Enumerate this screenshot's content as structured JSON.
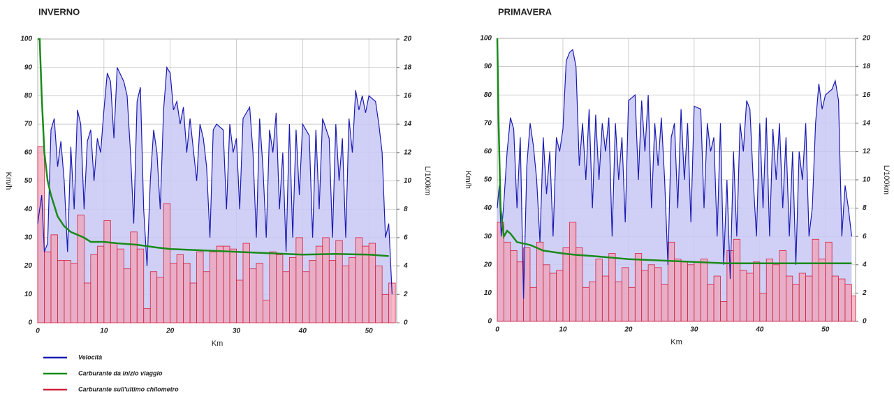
{
  "chart_data": [
    {
      "type": "combo",
      "title": "INVERNO",
      "x_label": "Km",
      "y_label": "Km/h",
      "y2_label": "L/100km",
      "xlim": [
        0,
        54.2
      ],
      "xticks": [
        0,
        10,
        20,
        30,
        40,
        50
      ],
      "ylim": [
        0,
        100
      ],
      "yticks": [
        0,
        10,
        20,
        30,
        40,
        50,
        60,
        70,
        80,
        90,
        100
      ],
      "y2lim": [
        0,
        20
      ],
      "y2ticks": [
        0,
        2,
        4,
        6,
        8,
        10,
        12,
        14,
        16,
        18,
        20
      ],
      "grid": true,
      "legend": "bottom-left",
      "series": [
        {
          "name": "Velocità",
          "type": "area",
          "color": "#1a1ab4",
          "fill": "#c8c8f5",
          "x": [
            0,
            0.3,
            0.6,
            1,
            1.5,
            2,
            2.5,
            3,
            3.5,
            4,
            4.5,
            5,
            5.5,
            6,
            6.5,
            7,
            7.5,
            8,
            8.5,
            9,
            9.5,
            10,
            10.5,
            11,
            11.5,
            12,
            13,
            13.5,
            14,
            14.5,
            15,
            15.5,
            16,
            16.5,
            17,
            17.5,
            18,
            18.5,
            19,
            19.5,
            20,
            20.5,
            21,
            21.5,
            22,
            22.5,
            23,
            24,
            24.5,
            25,
            25.5,
            26,
            26.5,
            27,
            28,
            28.5,
            29,
            29.5,
            30,
            30.5,
            31,
            32,
            32.5,
            33,
            33.5,
            34,
            34.5,
            35,
            35.5,
            36,
            36.5,
            37,
            37.5,
            38,
            38.5,
            39,
            39.5,
            40,
            41,
            41.5,
            42,
            42.5,
            43,
            44,
            44.5,
            45,
            45.5,
            46,
            46.5,
            47,
            47.5,
            48,
            48.5,
            49,
            49.5,
            50,
            51,
            51.5,
            52,
            52.5,
            53,
            53.5
          ],
          "values": [
            35,
            40,
            45,
            25,
            28,
            68,
            72,
            55,
            64,
            50,
            25,
            62,
            40,
            75,
            70,
            40,
            64,
            68,
            50,
            65,
            60,
            75,
            88,
            85,
            65,
            90,
            85,
            80,
            60,
            35,
            78,
            83,
            40,
            20,
            50,
            68,
            60,
            40,
            75,
            90,
            88,
            75,
            78,
            70,
            76,
            60,
            72,
            50,
            70,
            65,
            55,
            30,
            68,
            70,
            68,
            40,
            70,
            60,
            65,
            40,
            72,
            76,
            60,
            30,
            72,
            55,
            30,
            68,
            60,
            74,
            40,
            60,
            25,
            70,
            30,
            68,
            45,
            70,
            66,
            30,
            68,
            40,
            72,
            65,
            30,
            70,
            50,
            65,
            30,
            72,
            60,
            82,
            75,
            80,
            74,
            80,
            78,
            70,
            60,
            30,
            35,
            10
          ]
        },
        {
          "name": "Carburante da inizio viaggio",
          "type": "line",
          "axis": "y2",
          "color": "#1a8a1a",
          "x": [
            0,
            0.3,
            0.6,
            1,
            1.5,
            2,
            3,
            4,
            5,
            6,
            7,
            8,
            10,
            12,
            15,
            18,
            20,
            25,
            30,
            35,
            40,
            45,
            50,
            53
          ],
          "values": [
            20,
            20,
            16,
            12,
            10,
            9,
            7.5,
            6.8,
            6.4,
            6.2,
            6,
            5.7,
            5.7,
            5.6,
            5.5,
            5.3,
            5.2,
            5.1,
            5,
            4.9,
            4.8,
            4.85,
            4.8,
            4.7
          ]
        },
        {
          "name": "Carburante sull'ultimo chilometro",
          "type": "bar",
          "axis": "y2",
          "color": "#d02040",
          "fill": "#f3a0b4",
          "x": [
            0,
            1,
            2,
            3,
            4,
            5,
            6,
            7,
            8,
            9,
            10,
            11,
            12,
            13,
            14,
            15,
            16,
            17,
            18,
            19,
            20,
            21,
            22,
            23,
            24,
            25,
            26,
            27,
            28,
            29,
            30,
            31,
            32,
            33,
            34,
            35,
            36,
            37,
            38,
            39,
            40,
            41,
            42,
            43,
            44,
            45,
            46,
            47,
            48,
            49,
            50,
            51,
            52,
            53
          ],
          "values": [
            12.4,
            5,
            6.2,
            4.4,
            4.4,
            4.2,
            7.6,
            2.8,
            4.8,
            5.4,
            7.2,
            5.6,
            5.2,
            3.8,
            6.4,
            5.2,
            1,
            3.6,
            3.2,
            8.4,
            4.2,
            4.8,
            4.2,
            2.8,
            5,
            3.6,
            5,
            5.4,
            5.4,
            5.2,
            3,
            5.6,
            3.8,
            4.2,
            1.6,
            5,
            4.8,
            3.6,
            4.6,
            6,
            3.6,
            4.4,
            5.4,
            6,
            4.4,
            5.8,
            4,
            4.6,
            6,
            5.4,
            5.6,
            4,
            2,
            2.8
          ]
        }
      ]
    },
    {
      "type": "combo",
      "title": "PRIMAVERA",
      "x_label": "Km",
      "y_label": "Km/h",
      "y2_label": "L/100km",
      "xlim": [
        0,
        54.6
      ],
      "xticks": [
        0,
        10,
        20,
        30,
        40,
        50
      ],
      "ylim": [
        0,
        100
      ],
      "yticks": [
        0,
        10,
        20,
        30,
        40,
        50,
        60,
        70,
        80,
        90,
        100
      ],
      "y2lim": [
        0,
        20
      ],
      "y2ticks": [
        0,
        2,
        4,
        6,
        8,
        10,
        12,
        14,
        16,
        18,
        20
      ],
      "grid": true,
      "series": [
        {
          "type": "area",
          "color": "#1a1ab4",
          "fill": "#c8c8f5",
          "x": [
            0,
            0.3,
            0.6,
            1,
            1.5,
            2,
            2.5,
            3,
            3.5,
            4,
            4.5,
            5,
            5.5,
            6,
            6.5,
            7,
            7.5,
            8,
            8.5,
            9,
            9.5,
            10,
            10.5,
            11,
            11.5,
            12,
            12.5,
            13,
            13.5,
            14,
            14.5,
            15,
            15.5,
            16,
            16.5,
            17,
            17.5,
            18,
            18.5,
            19,
            19.5,
            20,
            21,
            21.5,
            22,
            22.5,
            23,
            23.5,
            24,
            24.5,
            25,
            25.5,
            26,
            26.5,
            27,
            27.5,
            28,
            28.5,
            29,
            29.5,
            30,
            31,
            31.5,
            32,
            32.5,
            33,
            33.5,
            34,
            34.5,
            35,
            35.5,
            36,
            36.5,
            37,
            37.5,
            38,
            38.5,
            39,
            39.5,
            40,
            40.5,
            41,
            41.5,
            42,
            42.5,
            43,
            43.5,
            44,
            44.5,
            45,
            45.5,
            46,
            46.5,
            47,
            47.5,
            48,
            48.5,
            49,
            49.5,
            50,
            51,
            51.5,
            52,
            52.5,
            53,
            53.5,
            54
          ],
          "values": [
            40,
            48,
            30,
            42,
            60,
            72,
            68,
            40,
            65,
            8,
            55,
            70,
            62,
            50,
            28,
            65,
            45,
            60,
            30,
            65,
            60,
            68,
            92,
            95,
            96,
            90,
            55,
            70,
            50,
            75,
            40,
            73,
            50,
            70,
            60,
            72,
            30,
            70,
            50,
            65,
            35,
            78,
            80,
            50,
            78,
            60,
            80,
            40,
            70,
            55,
            72,
            50,
            20,
            65,
            70,
            40,
            75,
            50,
            70,
            35,
            76,
            75,
            40,
            70,
            60,
            65,
            30,
            70,
            20,
            50,
            15,
            60,
            30,
            70,
            60,
            78,
            75,
            50,
            30,
            70,
            40,
            72,
            30,
            68,
            50,
            70,
            40,
            65,
            30,
            60,
            20,
            60,
            50,
            70,
            30,
            40,
            70,
            84,
            75,
            80,
            82,
            85,
            78,
            30,
            48,
            40,
            30
          ]
        },
        {
          "type": "line",
          "axis": "y2",
          "color": "#1a8a1a",
          "x": [
            0,
            0.2,
            0.5,
            1,
            1.5,
            2,
            3,
            5,
            7,
            10,
            12,
            15,
            20,
            25,
            30,
            35,
            40,
            45,
            50,
            54
          ],
          "values": [
            20,
            14,
            8,
            6,
            6.4,
            6.2,
            5.6,
            5.4,
            5,
            4.8,
            4.7,
            4.6,
            4.4,
            4.3,
            4.2,
            4.1,
            4.1,
            4.1,
            4.1,
            4.1
          ]
        },
        {
          "type": "bar",
          "axis": "y2",
          "color": "#d02040",
          "fill": "#f3a0b4",
          "x": [
            0,
            1,
            2,
            3,
            4,
            5,
            6,
            7,
            8,
            9,
            10,
            11,
            12,
            13,
            14,
            15,
            16,
            17,
            18,
            19,
            20,
            21,
            22,
            23,
            24,
            25,
            26,
            27,
            28,
            29,
            30,
            31,
            32,
            33,
            34,
            35,
            36,
            37,
            38,
            39,
            40,
            41,
            42,
            43,
            44,
            45,
            46,
            47,
            48,
            49,
            50,
            51,
            52,
            53,
            54
          ],
          "values": [
            7,
            5.6,
            5,
            4.2,
            5.2,
            2.4,
            5.6,
            4,
            3.4,
            3.6,
            5.2,
            7,
            5.2,
            2.4,
            2.8,
            4.4,
            3.2,
            4.8,
            2.8,
            3.8,
            2.4,
            4.8,
            3.6,
            4,
            3.8,
            2.6,
            5.6,
            4.4,
            4.2,
            4,
            4.2,
            4.4,
            2.6,
            3.2,
            1.4,
            5,
            5.8,
            3.6,
            3.4,
            4.2,
            2,
            4.4,
            4,
            5,
            3.2,
            2.6,
            3.4,
            3.2,
            5.8,
            4.4,
            5.6,
            3.2,
            3,
            2.6,
            1.8
          ]
        }
      ]
    }
  ]
}
